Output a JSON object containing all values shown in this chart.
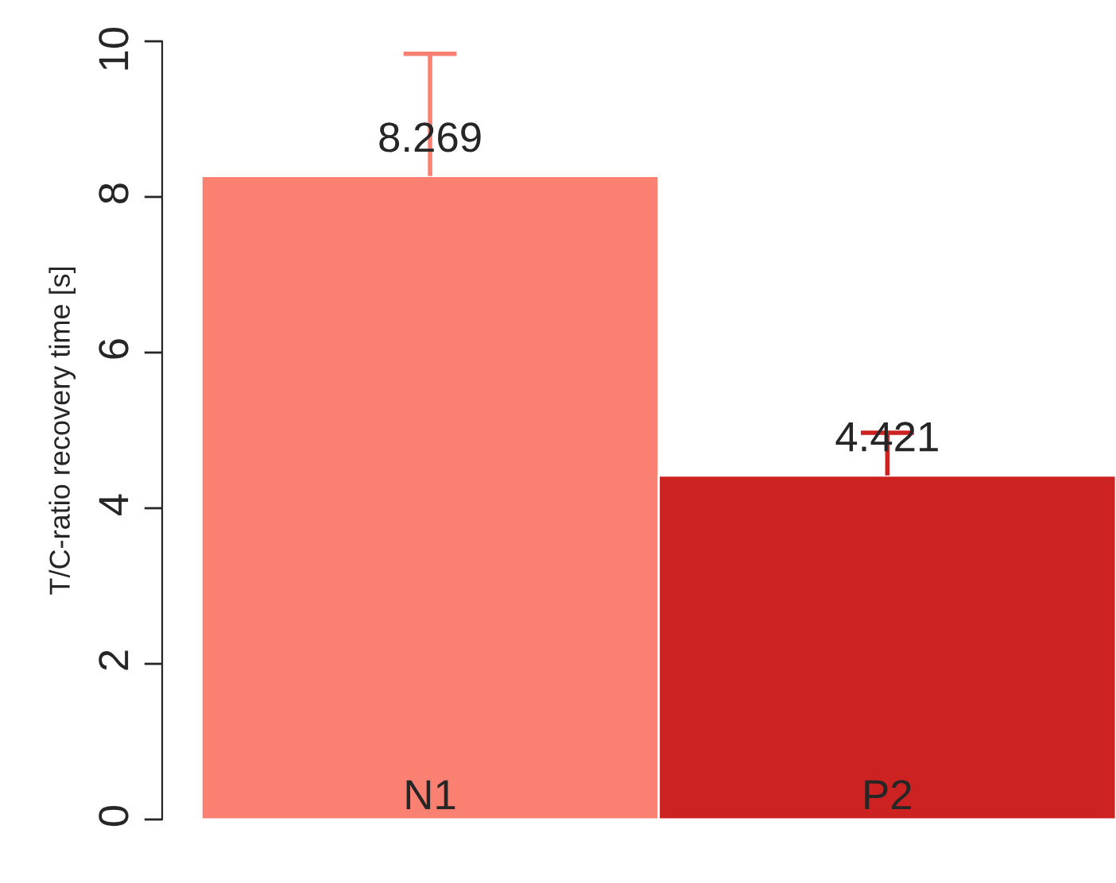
{
  "chart_data": {
    "type": "bar",
    "ylabel": "T/C-ratio recovery time [s]",
    "categories": [
      "N1",
      "P2"
    ],
    "values": [
      8.269,
      4.421
    ],
    "colors": [
      "#fa8072",
      "#cc2222"
    ],
    "errors": [
      [
        8.269,
        9.84
      ],
      [
        4.421,
        4.97
      ]
    ],
    "ylim": [
      0,
      10
    ],
    "yticks": [
      0,
      2,
      4,
      6,
      8,
      10
    ],
    "data_labels": true,
    "grid": false,
    "legend": false
  }
}
